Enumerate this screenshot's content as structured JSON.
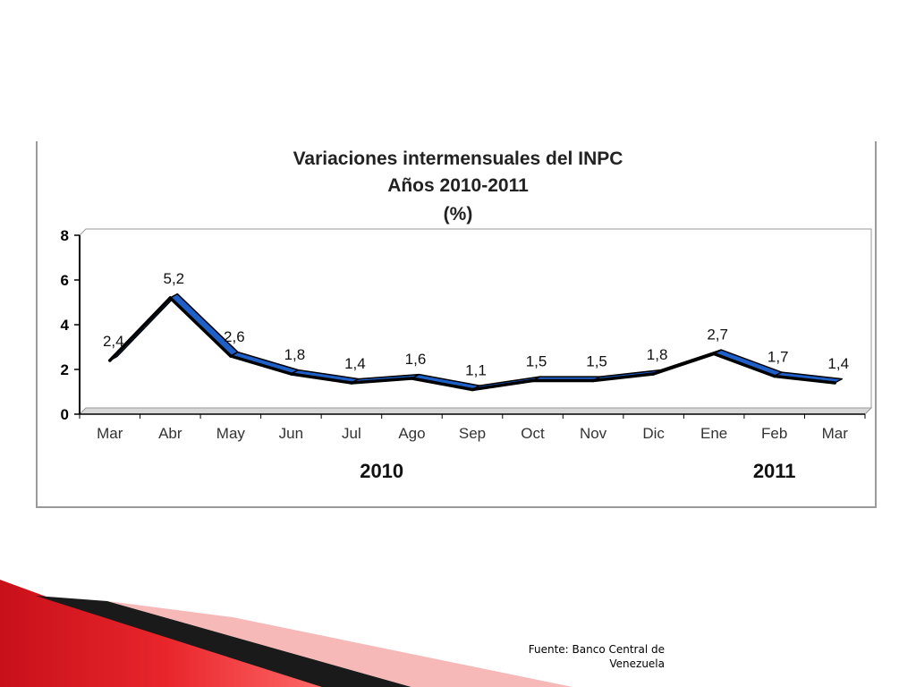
{
  "chart_data": {
    "type": "line",
    "title_lines": [
      "Variaciones intermensuales del INPC",
      "Años 2010-2011",
      "(%)"
    ],
    "categories": [
      "Mar",
      "Abr",
      "May",
      "Jun",
      "Jul",
      "Ago",
      "Sep",
      "Oct",
      "Nov",
      "Dic",
      "Ene",
      "Feb",
      "Mar"
    ],
    "values": [
      2.4,
      5.2,
      2.6,
      1.8,
      1.4,
      1.6,
      1.1,
      1.5,
      1.5,
      1.8,
      2.7,
      1.7,
      1.4
    ],
    "data_labels": [
      "2,4",
      "5,2",
      "2,6",
      "1,8",
      "1,4",
      "1,6",
      "1,1",
      "1,5",
      "1,5",
      "1,8",
      "2,7",
      "1,7",
      "1,4"
    ],
    "yticks": [
      "0",
      "2",
      "4",
      "6",
      "8"
    ],
    "ylim": [
      0,
      8
    ],
    "year_labels": [
      "2010",
      "2011"
    ],
    "line_color": "#1f5fc8",
    "grid": false,
    "legend": "none"
  },
  "source": {
    "line1": "Fuente: Banco Central de",
    "line2": "Venezuela"
  }
}
